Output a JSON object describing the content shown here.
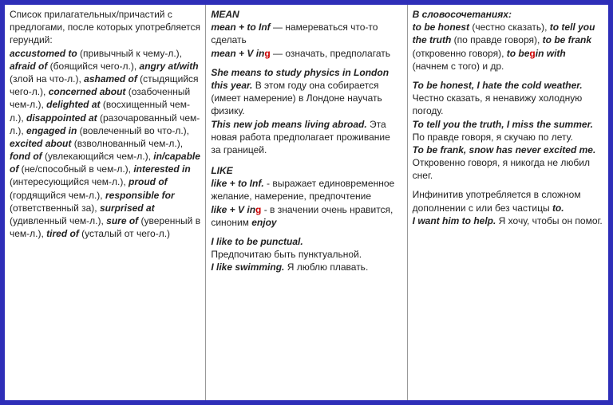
{
  "col1": {
    "intro": "Список прилагательных/причастий с предлогами, после которых употребляется герундий:",
    "items": [
      {
        "term": "accustomed to",
        "gloss": " (привычный к чему-л.), "
      },
      {
        "term": "afraid of",
        "gloss": " (боящийся чего-л.), "
      },
      {
        "term": "angry at/with",
        "gloss": " (злой на что-л.), "
      },
      {
        "term": "ashamed of",
        "gloss": " (стыдящийся чего-л.), "
      },
      {
        "term": "concerned about",
        "gloss": " (озабоченный чем-л.), "
      },
      {
        "term": "delighted at",
        "gloss": " (восхищенный чем-л.), "
      },
      {
        "term": "disappointed at",
        "gloss": " (разочарованный чем-л.), "
      },
      {
        "term": "engaged in",
        "gloss": " (вовлеченный во что-л.), "
      },
      {
        "term": "excited about",
        "gloss": " (взволнованный чем-л.), "
      },
      {
        "term": "fond of",
        "gloss": " (увлекающийся чем-л.), "
      },
      {
        "term": "in/capable of",
        "gloss": " (не/способный в чем-л.), "
      },
      {
        "term": "interested in",
        "gloss": " (интересующийся чем-л.), "
      },
      {
        "term": "proud of",
        "gloss": " (гордящийся чем-л.), "
      },
      {
        "term": "responsible for",
        "gloss": " (ответственный за), "
      },
      {
        "term": "surprised at",
        "gloss": " (удивленный чем-л.), "
      },
      {
        "term": "sure of",
        "gloss": " (уверенный в чем-л.), "
      },
      {
        "term": "tired of",
        "gloss": " (усталый от чего-л.)"
      }
    ]
  },
  "col2": {
    "head1": "MEAN",
    "rule1a": "mean + to Inf",
    "rule1a_dash": " — ",
    "rule1a_txt": "намереваться что-то сделать",
    "rule1b": "mean + V in",
    "rule1b_g": "g",
    "rule1b_dash": " — ",
    "rule1b_txt": "означать, предполагать",
    "ex1a_b": "She means to study physics in London this year.",
    "ex1a_t": " В этом году она собирается (имеет намерение) в Лондоне научать физику.",
    "ex1b_b": "This new job means living abroad.",
    "ex1b_t": " Эта новая работа предполагает проживание за границей.",
    "head2": "LIKE",
    "rule2a": "like + to Inf.",
    "rule2a_dash": "  - ",
    "rule2a_txt": "выражает единовременное желание, намерение, предпочтение",
    "rule2b": "like + V in",
    "rule2b_g": "g",
    "rule2b_dash": "   - ",
    "rule2b_txt1": "в значении очень нравится, синоним ",
    "rule2b_enjoy": "enjoy",
    "ex2a_b": "I like to be punctual.",
    "ex2a_t": "Предпочитаю быть пунктуальной.",
    "ex2b_b": "I like swimming.",
    "ex2b_t": " Я люблю плавать."
  },
  "col3": {
    "head": "В словосочетаниях:",
    "p1a": "to be honest",
    "p1at": " (честно сказать), ",
    "p1b": "to tell you the truth",
    "p1bt": " (по правде говоря), ",
    "p1c": "to be frank",
    "p1ct": " (откровенно говоря), ",
    "p1d": "to be",
    "p1d_g": "g",
    "p1d2": "in with",
    "p1dt": " (начнем с того) и др.",
    "ex1b": "To be honest, I hate the cold weather.",
    "ex1t": " Честно сказать, я ненавижу холодную погоду.",
    "ex2b": "To tell you the truth, I miss the summer.",
    "ex2t": " По правде говоря, я скучаю по лету.",
    "ex3b": "To be frank, snow has never excited me.",
    "ex3t": " Откровенно говоря, я никогда не любил снег.",
    "note1": "Инфинитив употребляется в сложном дополнении с или без частицы ",
    "note_to": "to.",
    "ex4b": "I want him to help.",
    "ex4t": " Я хочу, чтобы он помог."
  }
}
